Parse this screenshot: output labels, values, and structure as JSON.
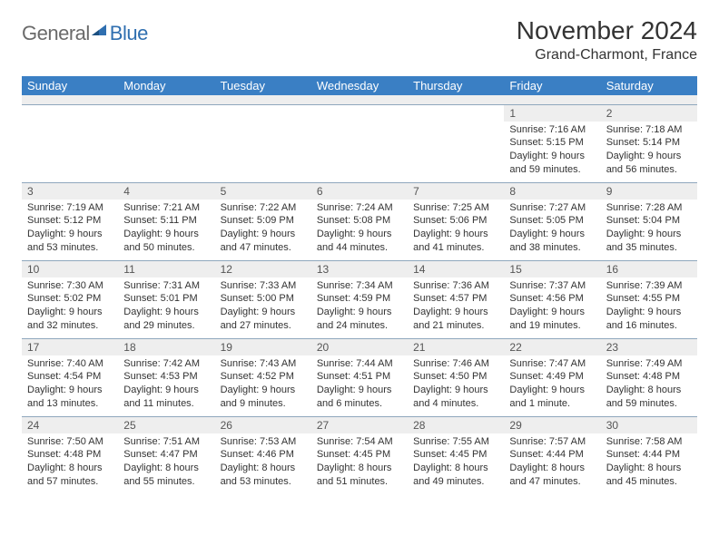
{
  "logo": {
    "part1": "General",
    "part2": "Blue"
  },
  "title": "November 2024",
  "location": "Grand-Charmont, France",
  "colors": {
    "header_bg": "#3a7fc4",
    "header_text": "#ffffff",
    "daynum_bg": "#eeeeee",
    "cell_border": "#8fa7bd",
    "body_text": "#333333",
    "logo_gray": "#6a6a6a",
    "logo_blue": "#2f6fb0"
  },
  "fonts": {
    "title_size": 28,
    "location_size": 16,
    "header_size": 13,
    "daynum_size": 12,
    "info_size": 11
  },
  "day_labels": [
    "Sunday",
    "Monday",
    "Tuesday",
    "Wednesday",
    "Thursday",
    "Friday",
    "Saturday"
  ],
  "weeks": [
    [
      null,
      null,
      null,
      null,
      null,
      {
        "n": "1",
        "sunrise": "Sunrise: 7:16 AM",
        "sunset": "Sunset: 5:15 PM",
        "day": "Daylight: 9 hours and 59 minutes."
      },
      {
        "n": "2",
        "sunrise": "Sunrise: 7:18 AM",
        "sunset": "Sunset: 5:14 PM",
        "day": "Daylight: 9 hours and 56 minutes."
      }
    ],
    [
      {
        "n": "3",
        "sunrise": "Sunrise: 7:19 AM",
        "sunset": "Sunset: 5:12 PM",
        "day": "Daylight: 9 hours and 53 minutes."
      },
      {
        "n": "4",
        "sunrise": "Sunrise: 7:21 AM",
        "sunset": "Sunset: 5:11 PM",
        "day": "Daylight: 9 hours and 50 minutes."
      },
      {
        "n": "5",
        "sunrise": "Sunrise: 7:22 AM",
        "sunset": "Sunset: 5:09 PM",
        "day": "Daylight: 9 hours and 47 minutes."
      },
      {
        "n": "6",
        "sunrise": "Sunrise: 7:24 AM",
        "sunset": "Sunset: 5:08 PM",
        "day": "Daylight: 9 hours and 44 minutes."
      },
      {
        "n": "7",
        "sunrise": "Sunrise: 7:25 AM",
        "sunset": "Sunset: 5:06 PM",
        "day": "Daylight: 9 hours and 41 minutes."
      },
      {
        "n": "8",
        "sunrise": "Sunrise: 7:27 AM",
        "sunset": "Sunset: 5:05 PM",
        "day": "Daylight: 9 hours and 38 minutes."
      },
      {
        "n": "9",
        "sunrise": "Sunrise: 7:28 AM",
        "sunset": "Sunset: 5:04 PM",
        "day": "Daylight: 9 hours and 35 minutes."
      }
    ],
    [
      {
        "n": "10",
        "sunrise": "Sunrise: 7:30 AM",
        "sunset": "Sunset: 5:02 PM",
        "day": "Daylight: 9 hours and 32 minutes."
      },
      {
        "n": "11",
        "sunrise": "Sunrise: 7:31 AM",
        "sunset": "Sunset: 5:01 PM",
        "day": "Daylight: 9 hours and 29 minutes."
      },
      {
        "n": "12",
        "sunrise": "Sunrise: 7:33 AM",
        "sunset": "Sunset: 5:00 PM",
        "day": "Daylight: 9 hours and 27 minutes."
      },
      {
        "n": "13",
        "sunrise": "Sunrise: 7:34 AM",
        "sunset": "Sunset: 4:59 PM",
        "day": "Daylight: 9 hours and 24 minutes."
      },
      {
        "n": "14",
        "sunrise": "Sunrise: 7:36 AM",
        "sunset": "Sunset: 4:57 PM",
        "day": "Daylight: 9 hours and 21 minutes."
      },
      {
        "n": "15",
        "sunrise": "Sunrise: 7:37 AM",
        "sunset": "Sunset: 4:56 PM",
        "day": "Daylight: 9 hours and 19 minutes."
      },
      {
        "n": "16",
        "sunrise": "Sunrise: 7:39 AM",
        "sunset": "Sunset: 4:55 PM",
        "day": "Daylight: 9 hours and 16 minutes."
      }
    ],
    [
      {
        "n": "17",
        "sunrise": "Sunrise: 7:40 AM",
        "sunset": "Sunset: 4:54 PM",
        "day": "Daylight: 9 hours and 13 minutes."
      },
      {
        "n": "18",
        "sunrise": "Sunrise: 7:42 AM",
        "sunset": "Sunset: 4:53 PM",
        "day": "Daylight: 9 hours and 11 minutes."
      },
      {
        "n": "19",
        "sunrise": "Sunrise: 7:43 AM",
        "sunset": "Sunset: 4:52 PM",
        "day": "Daylight: 9 hours and 9 minutes."
      },
      {
        "n": "20",
        "sunrise": "Sunrise: 7:44 AM",
        "sunset": "Sunset: 4:51 PM",
        "day": "Daylight: 9 hours and 6 minutes."
      },
      {
        "n": "21",
        "sunrise": "Sunrise: 7:46 AM",
        "sunset": "Sunset: 4:50 PM",
        "day": "Daylight: 9 hours and 4 minutes."
      },
      {
        "n": "22",
        "sunrise": "Sunrise: 7:47 AM",
        "sunset": "Sunset: 4:49 PM",
        "day": "Daylight: 9 hours and 1 minute."
      },
      {
        "n": "23",
        "sunrise": "Sunrise: 7:49 AM",
        "sunset": "Sunset: 4:48 PM",
        "day": "Daylight: 8 hours and 59 minutes."
      }
    ],
    [
      {
        "n": "24",
        "sunrise": "Sunrise: 7:50 AM",
        "sunset": "Sunset: 4:48 PM",
        "day": "Daylight: 8 hours and 57 minutes."
      },
      {
        "n": "25",
        "sunrise": "Sunrise: 7:51 AM",
        "sunset": "Sunset: 4:47 PM",
        "day": "Daylight: 8 hours and 55 minutes."
      },
      {
        "n": "26",
        "sunrise": "Sunrise: 7:53 AM",
        "sunset": "Sunset: 4:46 PM",
        "day": "Daylight: 8 hours and 53 minutes."
      },
      {
        "n": "27",
        "sunrise": "Sunrise: 7:54 AM",
        "sunset": "Sunset: 4:45 PM",
        "day": "Daylight: 8 hours and 51 minutes."
      },
      {
        "n": "28",
        "sunrise": "Sunrise: 7:55 AM",
        "sunset": "Sunset: 4:45 PM",
        "day": "Daylight: 8 hours and 49 minutes."
      },
      {
        "n": "29",
        "sunrise": "Sunrise: 7:57 AM",
        "sunset": "Sunset: 4:44 PM",
        "day": "Daylight: 8 hours and 47 minutes."
      },
      {
        "n": "30",
        "sunrise": "Sunrise: 7:58 AM",
        "sunset": "Sunset: 4:44 PM",
        "day": "Daylight: 8 hours and 45 minutes."
      }
    ]
  ]
}
